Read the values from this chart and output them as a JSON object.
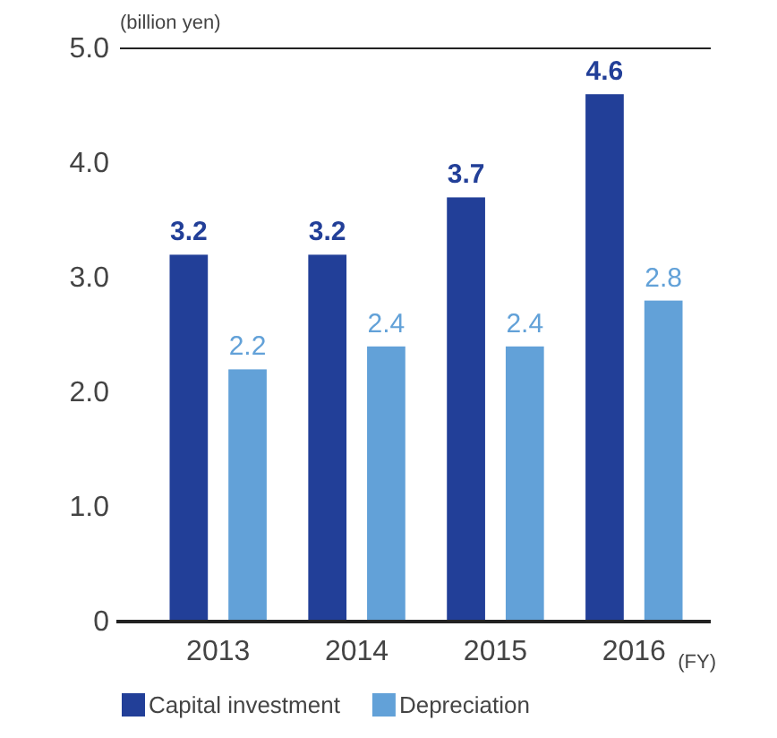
{
  "chart_data": {
    "type": "bar",
    "ylabel": "(billion yen)",
    "xlabel": "(FY)",
    "categories": [
      "2013",
      "2014",
      "2015",
      "2016"
    ],
    "series": [
      {
        "name": "Capital investment",
        "color": "#223f98",
        "values": [
          3.2,
          3.2,
          3.7,
          4.6
        ]
      },
      {
        "name": "Depreciation",
        "color": "#62a1d8",
        "values": [
          2.2,
          2.4,
          2.4,
          2.8
        ]
      }
    ],
    "ylim": [
      0,
      5
    ],
    "yticks": [
      0,
      {
        "value": 1,
        "label": "1.0"
      },
      {
        "value": 2,
        "label": "2.0"
      },
      {
        "value": 3,
        "label": "3.0"
      },
      {
        "value": 4,
        "label": "4.0"
      },
      {
        "value": 5,
        "label": "5.0"
      }
    ],
    "data_labels": true,
    "legend": "bottom left",
    "grid": false
  }
}
